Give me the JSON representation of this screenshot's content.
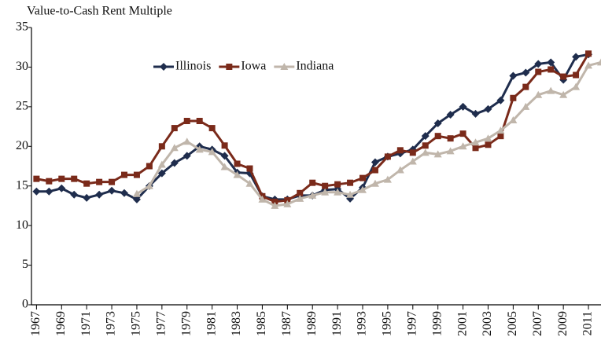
{
  "chart_data": {
    "type": "line",
    "title": "Value-to-Cash Rent Multiple",
    "x": [
      1967,
      1968,
      1969,
      1970,
      1971,
      1972,
      1973,
      1974,
      1975,
      1976,
      1977,
      1978,
      1979,
      1980,
      1981,
      1982,
      1983,
      1984,
      1985,
      1986,
      1987,
      1988,
      1989,
      1990,
      1991,
      1992,
      1993,
      1994,
      1995,
      1996,
      1997,
      1998,
      1999,
      2000,
      2001,
      2002,
      2003,
      2004,
      2005,
      2006,
      2007,
      2008,
      2009,
      2010,
      2011,
      2012
    ],
    "series": [
      {
        "name": "Illinois",
        "color": "#1f2d4d",
        "marker": "diamond",
        "values": [
          14.3,
          14.3,
          14.7,
          13.9,
          13.5,
          13.9,
          14.4,
          14.1,
          13.3,
          15.0,
          16.6,
          17.9,
          18.8,
          20.0,
          19.6,
          18.8,
          16.7,
          16.6,
          13.7,
          13.3,
          13.3,
          13.8,
          13.8,
          14.5,
          14.6,
          13.4,
          14.8,
          18.0,
          18.7,
          19.1,
          19.6,
          21.3,
          22.9,
          24.0,
          25.0,
          24.1,
          24.7,
          25.8,
          28.9,
          29.3,
          30.4,
          30.6,
          28.4,
          31.3,
          31.6,
          null
        ]
      },
      {
        "name": "Iowa",
        "color": "#7a2a1a",
        "marker": "square",
        "values": [
          15.9,
          15.6,
          15.9,
          15.9,
          15.3,
          15.5,
          15.5,
          16.4,
          16.4,
          17.5,
          20.0,
          22.3,
          23.2,
          23.2,
          22.3,
          20.1,
          17.8,
          17.2,
          13.7,
          13.0,
          13.2,
          14.1,
          15.4,
          15.0,
          15.2,
          15.4,
          16.0,
          17.0,
          18.7,
          19.5,
          19.2,
          20.1,
          21.3,
          21.0,
          21.6,
          19.8,
          20.2,
          21.3,
          26.1,
          27.5,
          29.4,
          29.7,
          28.8,
          29.0,
          31.7,
          null
        ]
      },
      {
        "name": "Indiana",
        "color": "#c0b6ab",
        "marker": "triangle",
        "values": [
          null,
          null,
          null,
          null,
          null,
          null,
          null,
          null,
          14.0,
          15.0,
          17.7,
          19.8,
          20.6,
          19.6,
          19.3,
          17.4,
          16.4,
          15.3,
          13.3,
          12.5,
          12.7,
          13.4,
          13.8,
          14.2,
          14.2,
          13.9,
          14.5,
          15.3,
          15.8,
          17.0,
          18.1,
          19.2,
          19.0,
          19.4,
          20.0,
          20.5,
          21.0,
          22.0,
          23.3,
          25.0,
          26.5,
          27.0,
          26.5,
          27.5,
          30.2,
          30.6
        ]
      }
    ],
    "xlim": [
      1966.6,
      2012
    ],
    "xticks": [
      1967,
      1969,
      1971,
      1973,
      1975,
      1977,
      1979,
      1981,
      1983,
      1985,
      1987,
      1989,
      1991,
      1993,
      1995,
      1997,
      1999,
      2001,
      2003,
      2005,
      2007,
      2009,
      2011
    ],
    "ylim": [
      0,
      35
    ],
    "yticks": [
      0,
      5,
      10,
      15,
      20,
      25,
      30,
      35
    ],
    "legend": "top",
    "grid": false
  }
}
